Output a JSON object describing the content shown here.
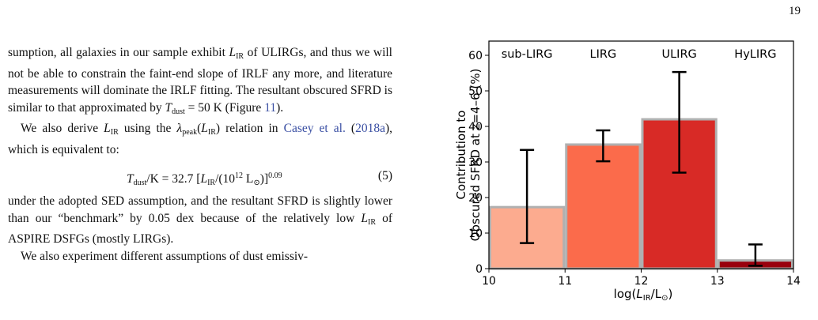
{
  "page_number": "19",
  "body": {
    "p1": {
      "t1": "sumption, all galaxies in our sample exhibit ",
      "m1": "L",
      "s1": "IR",
      "t2": " of ULIRGs, and thus we will not be able to constrain the faint-end slope of IRLF any more, and literature measurements will dominate the IRLF fitting. The resultant obscured SFRD is similar to that approximated by ",
      "m2": "T",
      "s2": "dust",
      "t3": " = 50 K (Figure ",
      "link1": "11",
      "t4": ")."
    },
    "p2": {
      "t1": "We also derive ",
      "m1": "L",
      "s1": "IR",
      "t2": " using the ",
      "m2": "λ",
      "s2": "peak",
      "t3": "(",
      "m3": "L",
      "s3": "IR",
      "t4": ") relation in ",
      "link1": "Casey et al.",
      "t5": " (",
      "link2": "2018a",
      "t6": "), which is equivalent to:"
    },
    "equation": {
      "m1": "T",
      "s1": "dust",
      "t1": "/K = 32.7 [",
      "m2": "L",
      "s2": "IR",
      "t2": "/(10",
      "sup1": "12",
      "t3": " L",
      "sub3": "⊙",
      "t4": ")]",
      "sup2": "0.09",
      "number": "(5)"
    },
    "p3": {
      "t1": "under the adopted SED assumption, and the resultant SFRD is slightly lower than our “benchmark” by 0.05 dex because of the relatively low ",
      "m1": "L",
      "s1": "IR",
      "t2": " of ASPIRE DSFGs (mostly LIRGs)."
    },
    "p4": {
      "t1": "We also experiment different assumptions of dust emissiv-"
    }
  },
  "chart_data": {
    "type": "bar",
    "ylabel_line1": "Contribution to",
    "ylabel_line2": "Obscured SFRD at z=4–6 (%)",
    "xlabel_main": "log(",
    "xlabel_L": "L",
    "xlabel_sub": "IR",
    "xlabel_mid": "/L",
    "xlabel_sun": "⊙",
    "xlabel_end": ")",
    "xlim": [
      10,
      14
    ],
    "ylim": [
      0,
      64
    ],
    "xticks": [
      "10",
      "11",
      "12",
      "13",
      "14"
    ],
    "yticks": [
      "0",
      "10",
      "20",
      "30",
      "40",
      "50",
      "60"
    ],
    "xtick_values": [
      10,
      11,
      12,
      13,
      14
    ],
    "ytick_values": [
      0,
      10,
      20,
      30,
      40,
      50,
      60
    ],
    "category_labels": [
      "sub-LIRG",
      "LIRG",
      "ULIRG",
      "HyLIRG"
    ],
    "bars": [
      {
        "x0": 10,
        "x1": 11,
        "value": 17.3,
        "err_low": 7.2,
        "err_high": 33.4,
        "color": "#fcab8f"
      },
      {
        "x0": 11,
        "x1": 12,
        "value": 34.9,
        "err_low": 30.2,
        "err_high": 38.9,
        "color": "#fb6b4b"
      },
      {
        "x0": 12,
        "x1": 13,
        "value": 42.0,
        "err_low": 27.0,
        "err_high": 55.3,
        "color": "#d82a26"
      },
      {
        "x0": 13,
        "x1": 14,
        "value": 2.3,
        "err_low": 0.8,
        "err_high": 6.8,
        "color": "#99000d"
      }
    ],
    "bar_edge_color": "#b0b0b0"
  }
}
